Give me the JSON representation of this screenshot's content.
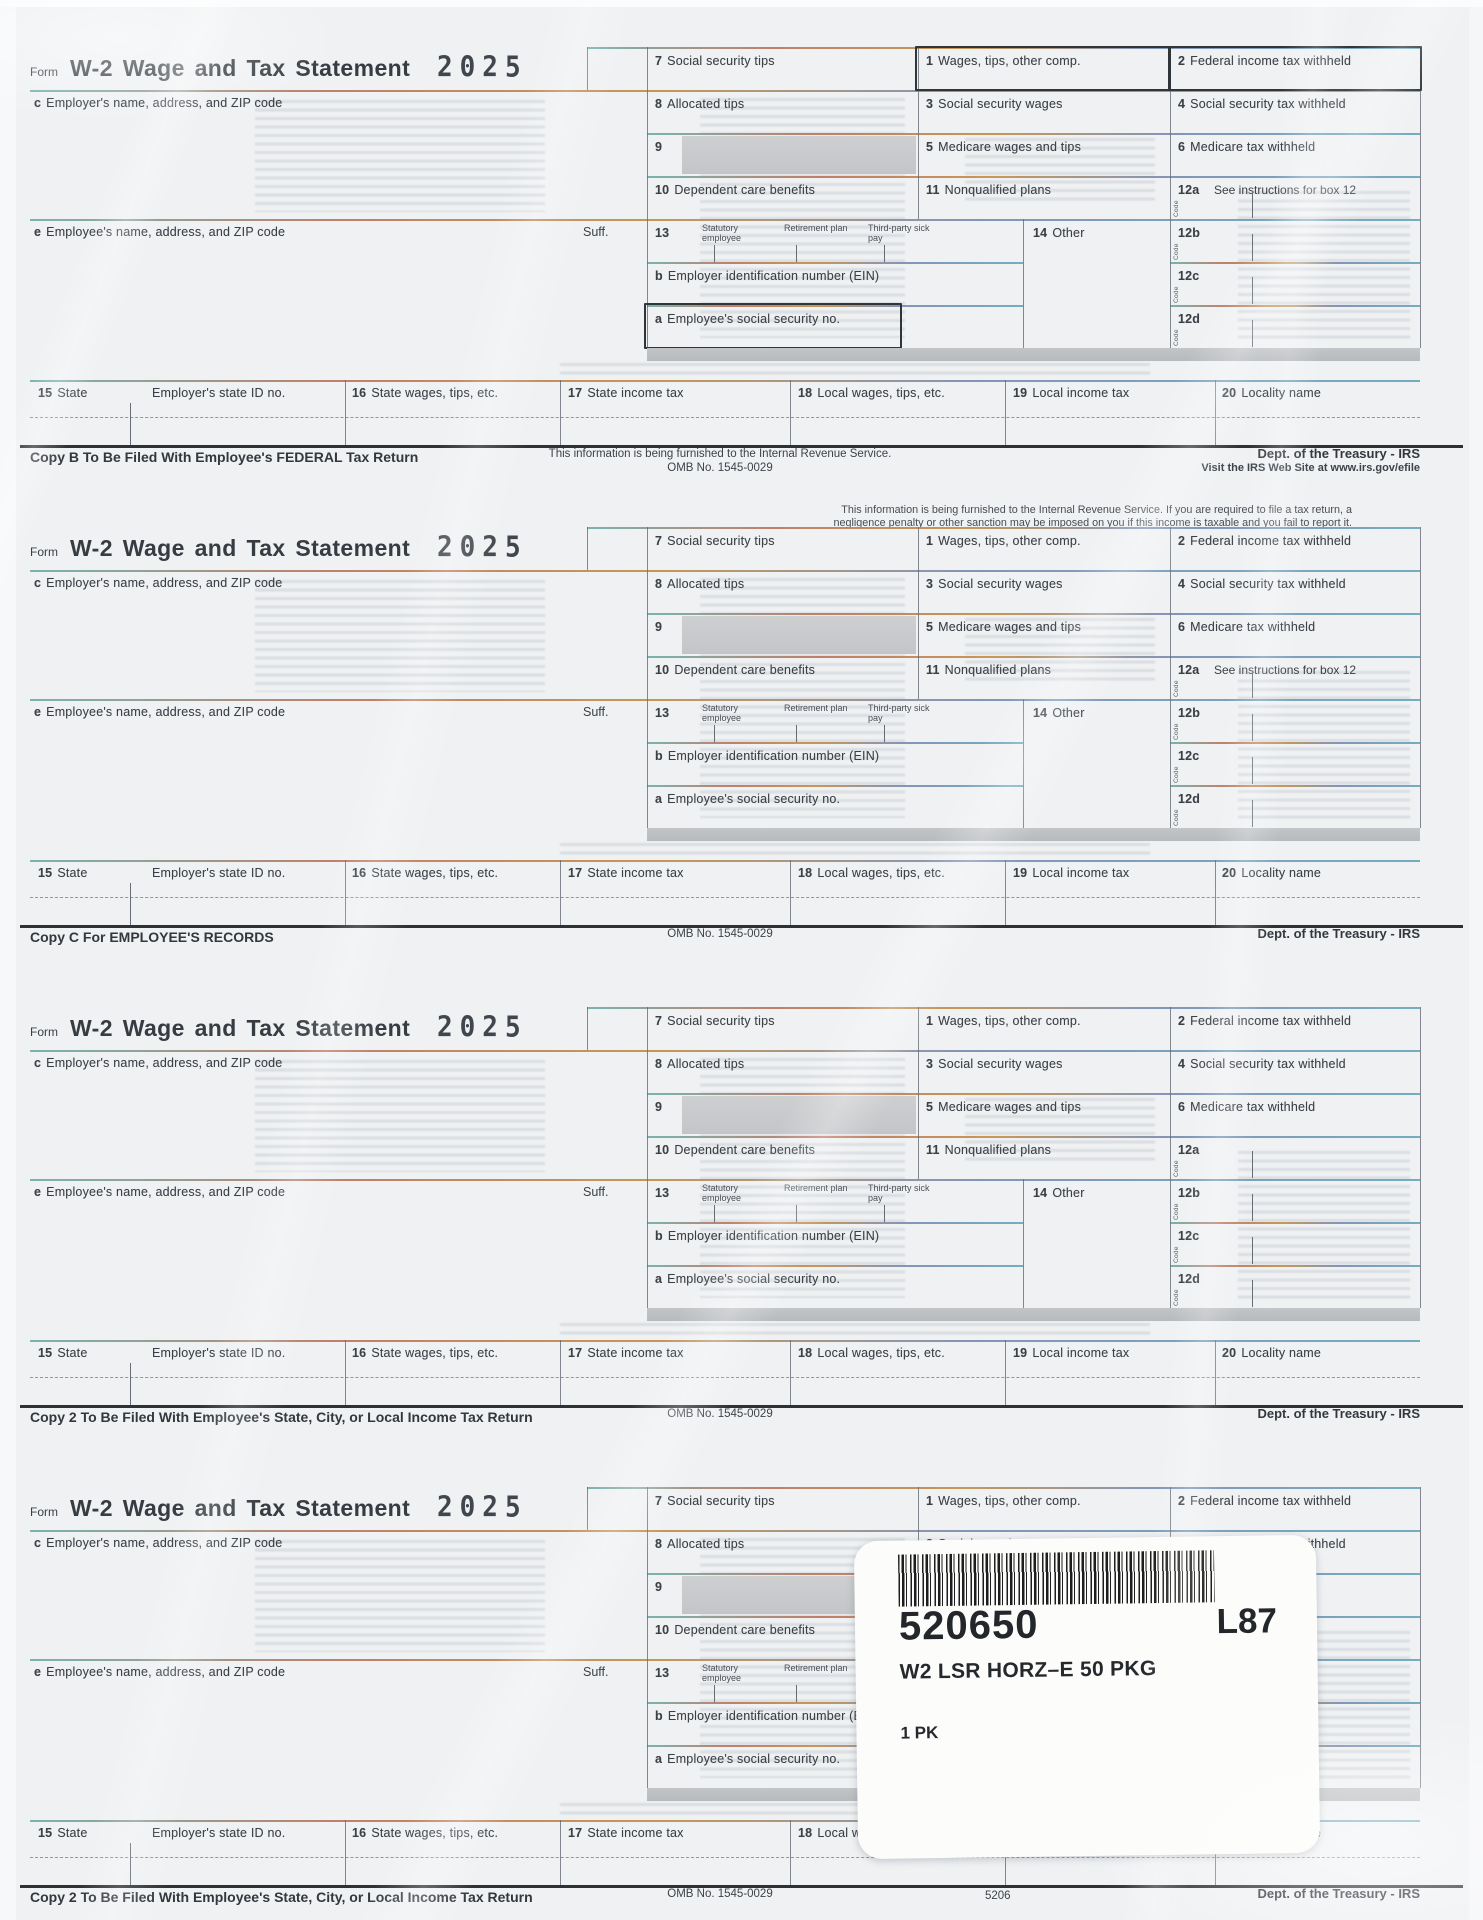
{
  "labels": {
    "form_word": "Form",
    "title": "W-2 Wage and Tax  Statement",
    "year": "2025",
    "c_num": "c",
    "c_label": "Employer's name, address, and ZIP code",
    "e_num": "e",
    "e_label": "Employee's name, address, and ZIP code",
    "suffix": "Suff.",
    "box7_num": "7",
    "box7": "Social security tips",
    "box8_num": "8",
    "box8": "Allocated tips",
    "box9_num": "9",
    "box10_num": "10",
    "box10": "Dependent care benefits",
    "box13_num": "13",
    "cb_statutory": "Statutory employee",
    "cb_retirement": "Retirement plan",
    "cb_sickpay": "Third-party sick pay",
    "boxb_num": "b",
    "boxb": "Employer identification number (EIN)",
    "boxa_num": "a",
    "boxa": "Employee's social security no.",
    "box1_num": "1",
    "box1": "Wages, tips, other comp.",
    "box3_num": "3",
    "box3": "Social security wages",
    "box5_num": "5",
    "box5": "Medicare wages and tips",
    "box11_num": "11",
    "box11": "Nonqualified plans",
    "box14_num": "14",
    "box14": "Other",
    "box2_num": "2",
    "box2": "Federal income tax withheld",
    "box4_num": "4",
    "box4": "Social security tax withheld",
    "box6_num": "6",
    "box6": "Medicare tax withheld",
    "box12a_num": "12a",
    "box12b_num": "12b",
    "box12c_num": "12c",
    "box12d_num": "12d",
    "code_vertical": "Code",
    "box15_num": "15",
    "box15": "State",
    "state_id": "Employer's state ID no.",
    "box16_num": "16",
    "box16": "State wages, tips, etc.",
    "box17_num": "17",
    "box17": "State income tax",
    "box18_num": "18",
    "box18": "Local wages, tips, etc.",
    "box19_num": "19",
    "box19": "Local income tax",
    "box20_num": "20",
    "box20": "Locality name"
  },
  "forms": [
    {
      "copy_line": "Copy B To Be Filed With Employee's FEDERAL Tax Return",
      "furnish_line": "This information is being furnished to the Internal Revenue Service.",
      "omb": "OMB No. 1545-0029",
      "dept": "Dept. of the Treasury - IRS",
      "efile_line": "Visit the IRS Web Site at www.irs.gov/efile",
      "box12a_label": "See instructions for box 12",
      "highlight": true
    },
    {
      "copy_line": "Copy C For EMPLOYEE'S RECORDS",
      "omb": "OMB No. 1545-0029",
      "dept": "Dept. of the Treasury - IRS",
      "box12a_label": "See instructions for box 12",
      "fine_print1": "This information is being furnished to the Internal Revenue Service. If you are required to file a tax return, a",
      "fine_print2": "negligence penalty or other sanction may be imposed on you if this income is taxable and you fail to report it."
    },
    {
      "copy_line": "Copy 2 To Be Filed With Employee's State, City, or Local Income Tax Return",
      "omb": "OMB No. 1545-0029",
      "dept": "Dept. of the Treasury - IRS"
    },
    {
      "copy_line": "Copy 2 To Be Filed With Employee's State, City, or Local Income Tax Return",
      "omb": "OMB No. 1545-0029",
      "form_number": "5206",
      "dept": "Dept. of the Treasury - IRS"
    }
  ],
  "package_label": {
    "item_number": "520650",
    "location_code": "L87",
    "description": "W2 LSR HORZ–E 50 PKG",
    "quantity": "1 PK"
  },
  "colors": {
    "paper": "#eff1f3",
    "ink": "#3a4046",
    "shade_fill": "#c3c6c9",
    "rule_teal": "#72b0ad",
    "rule_red": "#bd7a62",
    "rule_orange": "#c4934f",
    "rule_blue": "#7d90b6"
  }
}
